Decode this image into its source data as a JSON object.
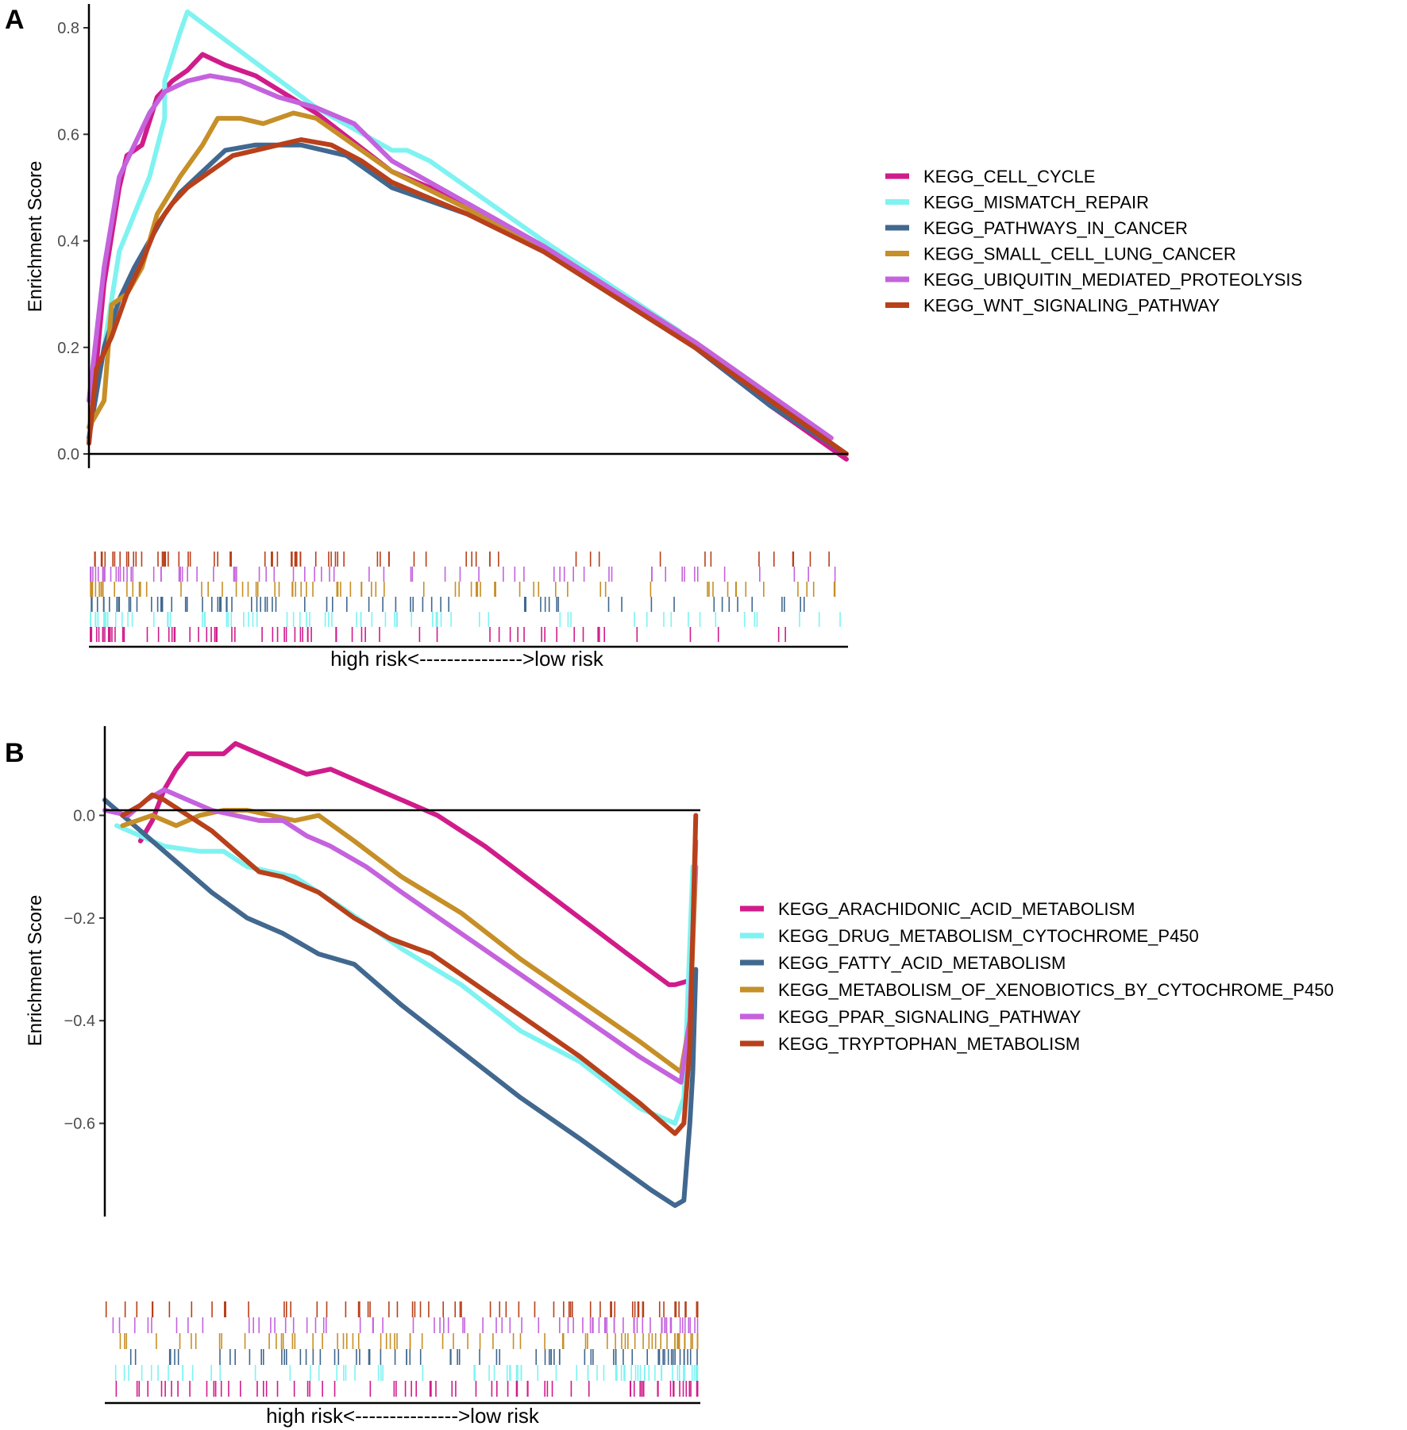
{
  "chart_data": [
    {
      "panel": "A",
      "type": "line",
      "ylabel": "Enrichment Score",
      "xlabel": "high risk<--------------->low risk",
      "ylim": [
        0,
        0.8
      ],
      "yticks": [
        "0.0",
        "0.2",
        "0.4",
        "0.6",
        "0.8"
      ],
      "ytick_values": [
        0.0,
        0.2,
        0.4,
        0.6,
        0.8
      ],
      "xlim": [
        0,
        1
      ],
      "legend_position": "right",
      "series": [
        {
          "name": "KEGG_CELL_CYCLE",
          "color": "#d01c8b",
          "x": [
            0,
            0.02,
            0.04,
            0.05,
            0.07,
            0.09,
            0.11,
            0.13,
            0.15,
            0.18,
            0.22,
            0.3,
            0.4,
            0.5,
            0.6,
            0.7,
            0.8,
            0.9,
            1.0
          ],
          "y": [
            0.02,
            0.32,
            0.5,
            0.56,
            0.58,
            0.67,
            0.7,
            0.72,
            0.75,
            0.73,
            0.71,
            0.64,
            0.53,
            0.47,
            0.39,
            0.29,
            0.2,
            0.09,
            -0.01
          ]
        },
        {
          "name": "KEGG_MISMATCH_REPAIR",
          "color": "#7ff3f1",
          "x": [
            0,
            0.02,
            0.04,
            0.06,
            0.08,
            0.1,
            0.1,
            0.12,
            0.13,
            0.3,
            0.4,
            0.42,
            0.45,
            0.6,
            0.78
          ],
          "y": [
            0.05,
            0.2,
            0.38,
            0.45,
            0.52,
            0.63,
            0.7,
            0.79,
            0.83,
            0.65,
            0.57,
            0.57,
            0.55,
            0.4,
            0.23
          ]
        },
        {
          "name": "KEGG_PATHWAYS_IN_CANCER",
          "color": "#41688f",
          "x": [
            0,
            0.02,
            0.04,
            0.06,
            0.08,
            0.1,
            0.12,
            0.15,
            0.18,
            0.22,
            0.28,
            0.34,
            0.4,
            0.5,
            0.6,
            0.7,
            0.8,
            0.9,
            1.0
          ],
          "y": [
            0.03,
            0.2,
            0.29,
            0.35,
            0.4,
            0.45,
            0.49,
            0.53,
            0.57,
            0.58,
            0.58,
            0.56,
            0.5,
            0.45,
            0.38,
            0.29,
            0.2,
            0.09,
            0.0
          ]
        },
        {
          "name": "KEGG_SMALL_CELL_LUNG_CANCER",
          "color": "#c68f27",
          "x": [
            0,
            0.02,
            0.03,
            0.05,
            0.07,
            0.09,
            0.12,
            0.15,
            0.17,
            0.2,
            0.23,
            0.27,
            0.3,
            0.35,
            0.4,
            0.5,
            0.6,
            0.7,
            0.8,
            0.9,
            0.98
          ],
          "y": [
            0.05,
            0.1,
            0.28,
            0.3,
            0.35,
            0.45,
            0.52,
            0.58,
            0.63,
            0.63,
            0.62,
            0.64,
            0.63,
            0.58,
            0.53,
            0.46,
            0.39,
            0.3,
            0.21,
            0.11,
            0.02
          ]
        },
        {
          "name": "KEGG_UBIQUITIN_MEDIATED_PROTEOLYSIS",
          "color": "#c463dd",
          "x": [
            0,
            0.02,
            0.04,
            0.06,
            0.08,
            0.1,
            0.13,
            0.16,
            0.2,
            0.25,
            0.3,
            0.35,
            0.4,
            0.5,
            0.6,
            0.7,
            0.8,
            0.9,
            0.98
          ],
          "y": [
            0.1,
            0.35,
            0.52,
            0.58,
            0.64,
            0.68,
            0.7,
            0.71,
            0.7,
            0.67,
            0.65,
            0.62,
            0.55,
            0.47,
            0.39,
            0.3,
            0.21,
            0.11,
            0.03
          ]
        },
        {
          "name": "KEGG_WNT_SIGNALING_PATHWAY",
          "color": "#b8401a",
          "x": [
            0,
            0.01,
            0.03,
            0.05,
            0.07,
            0.09,
            0.11,
            0.13,
            0.16,
            0.19,
            0.22,
            0.25,
            0.28,
            0.32,
            0.36,
            0.4,
            0.5,
            0.6,
            0.7,
            0.8,
            0.9,
            1.0
          ],
          "y": [
            0.02,
            0.16,
            0.22,
            0.3,
            0.36,
            0.43,
            0.47,
            0.5,
            0.53,
            0.56,
            0.57,
            0.58,
            0.59,
            0.58,
            0.55,
            0.51,
            0.45,
            0.38,
            0.29,
            0.2,
            0.1,
            0.0
          ]
        }
      ]
    },
    {
      "panel": "B",
      "type": "line",
      "ylabel": "Enrichment Score",
      "xlabel": "high risk<--------------->low risk",
      "ylim": [
        -0.78,
        0.16
      ],
      "yticks": [
        "−0.6",
        "−0.4",
        "−0.2",
        "0.0"
      ],
      "ytick_values": [
        -0.6,
        -0.4,
        -0.2,
        0.0
      ],
      "xlim": [
        0,
        1
      ],
      "legend_position": "right",
      "series": [
        {
          "name": "KEGG_ARACHIDONIC_ACID_METABOLISM",
          "color": "#d01c8b",
          "x": [
            0.06,
            0.08,
            0.1,
            0.12,
            0.14,
            0.17,
            0.2,
            0.22,
            0.26,
            0.3,
            0.34,
            0.38,
            0.42,
            0.48,
            0.56,
            0.64,
            0.72,
            0.8,
            0.88,
            0.95,
            0.96,
            0.99
          ],
          "y": [
            -0.05,
            -0.01,
            0.05,
            0.09,
            0.12,
            0.12,
            0.12,
            0.14,
            0.12,
            0.1,
            0.08,
            0.09,
            0.07,
            0.04,
            0.0,
            -0.06,
            -0.13,
            -0.2,
            -0.27,
            -0.33,
            -0.33,
            -0.32
          ]
        },
        {
          "name": "KEGG_DRUG_METABOLISM_CYTOCHROME_P450",
          "color": "#7ff3f1",
          "x": [
            0.02,
            0.06,
            0.1,
            0.16,
            0.2,
            0.24,
            0.28,
            0.32,
            0.4,
            0.5,
            0.6,
            0.7,
            0.8,
            0.9,
            0.96,
            0.975,
            0.99
          ],
          "y": [
            -0.02,
            -0.04,
            -0.06,
            -0.07,
            -0.07,
            -0.1,
            -0.11,
            -0.12,
            -0.18,
            -0.26,
            -0.33,
            -0.42,
            -0.48,
            -0.57,
            -0.6,
            -0.55,
            -0.1
          ]
        },
        {
          "name": "KEGG_FATTY_ACID_METABOLISM",
          "color": "#41688f",
          "x": [
            0,
            0.06,
            0.12,
            0.18,
            0.24,
            0.3,
            0.36,
            0.42,
            0.5,
            0.6,
            0.7,
            0.8,
            0.86,
            0.92,
            0.96,
            0.975,
            0.985,
            0.99,
            0.995
          ],
          "y": [
            0.03,
            -0.03,
            -0.09,
            -0.15,
            -0.2,
            -0.23,
            -0.27,
            -0.29,
            -0.37,
            -0.46,
            -0.55,
            -0.63,
            -0.68,
            -0.73,
            -0.76,
            -0.75,
            -0.6,
            -0.5,
            -0.3
          ]
        },
        {
          "name": "KEGG_METABOLISM_OF_XENOBIOTICS_BY_CYTOCHROME_P450",
          "color": "#c68f27",
          "x": [
            0.03,
            0.08,
            0.12,
            0.16,
            0.2,
            0.24,
            0.28,
            0.32,
            0.36,
            0.42,
            0.5,
            0.6,
            0.7,
            0.8,
            0.9,
            0.97,
            0.985,
            0.995
          ],
          "y": [
            -0.02,
            0.0,
            -0.02,
            0.0,
            0.01,
            0.01,
            0.0,
            -0.01,
            0.0,
            -0.05,
            -0.12,
            -0.19,
            -0.28,
            -0.36,
            -0.44,
            -0.5,
            -0.4,
            -0.1
          ]
        },
        {
          "name": "KEGG_PPAR_SIGNALING_PATHWAY",
          "color": "#c463dd",
          "x": [
            0,
            0.04,
            0.07,
            0.1,
            0.14,
            0.18,
            0.22,
            0.26,
            0.3,
            0.34,
            0.38,
            0.44,
            0.5,
            0.6,
            0.7,
            0.8,
            0.9,
            0.97,
            0.985,
            0.995
          ],
          "y": [
            0.01,
            0.0,
            0.03,
            0.05,
            0.03,
            0.01,
            0.0,
            -0.01,
            -0.01,
            -0.04,
            -0.06,
            -0.1,
            -0.15,
            -0.23,
            -0.31,
            -0.39,
            -0.47,
            -0.52,
            -0.4,
            -0.05
          ]
        },
        {
          "name": "KEGG_TRYPTOPHAN_METABOLISM",
          "color": "#b8401a",
          "x": [
            0.03,
            0.06,
            0.08,
            0.1,
            0.14,
            0.18,
            0.22,
            0.26,
            0.3,
            0.36,
            0.42,
            0.48,
            0.55,
            0.6,
            0.7,
            0.8,
            0.9,
            0.96,
            0.975,
            0.985,
            0.995
          ],
          "y": [
            0.0,
            0.02,
            0.04,
            0.03,
            0.0,
            -0.03,
            -0.07,
            -0.11,
            -0.12,
            -0.15,
            -0.2,
            -0.24,
            -0.27,
            -0.31,
            -0.39,
            -0.47,
            -0.56,
            -0.62,
            -0.6,
            -0.45,
            0.0
          ]
        }
      ]
    }
  ]
}
